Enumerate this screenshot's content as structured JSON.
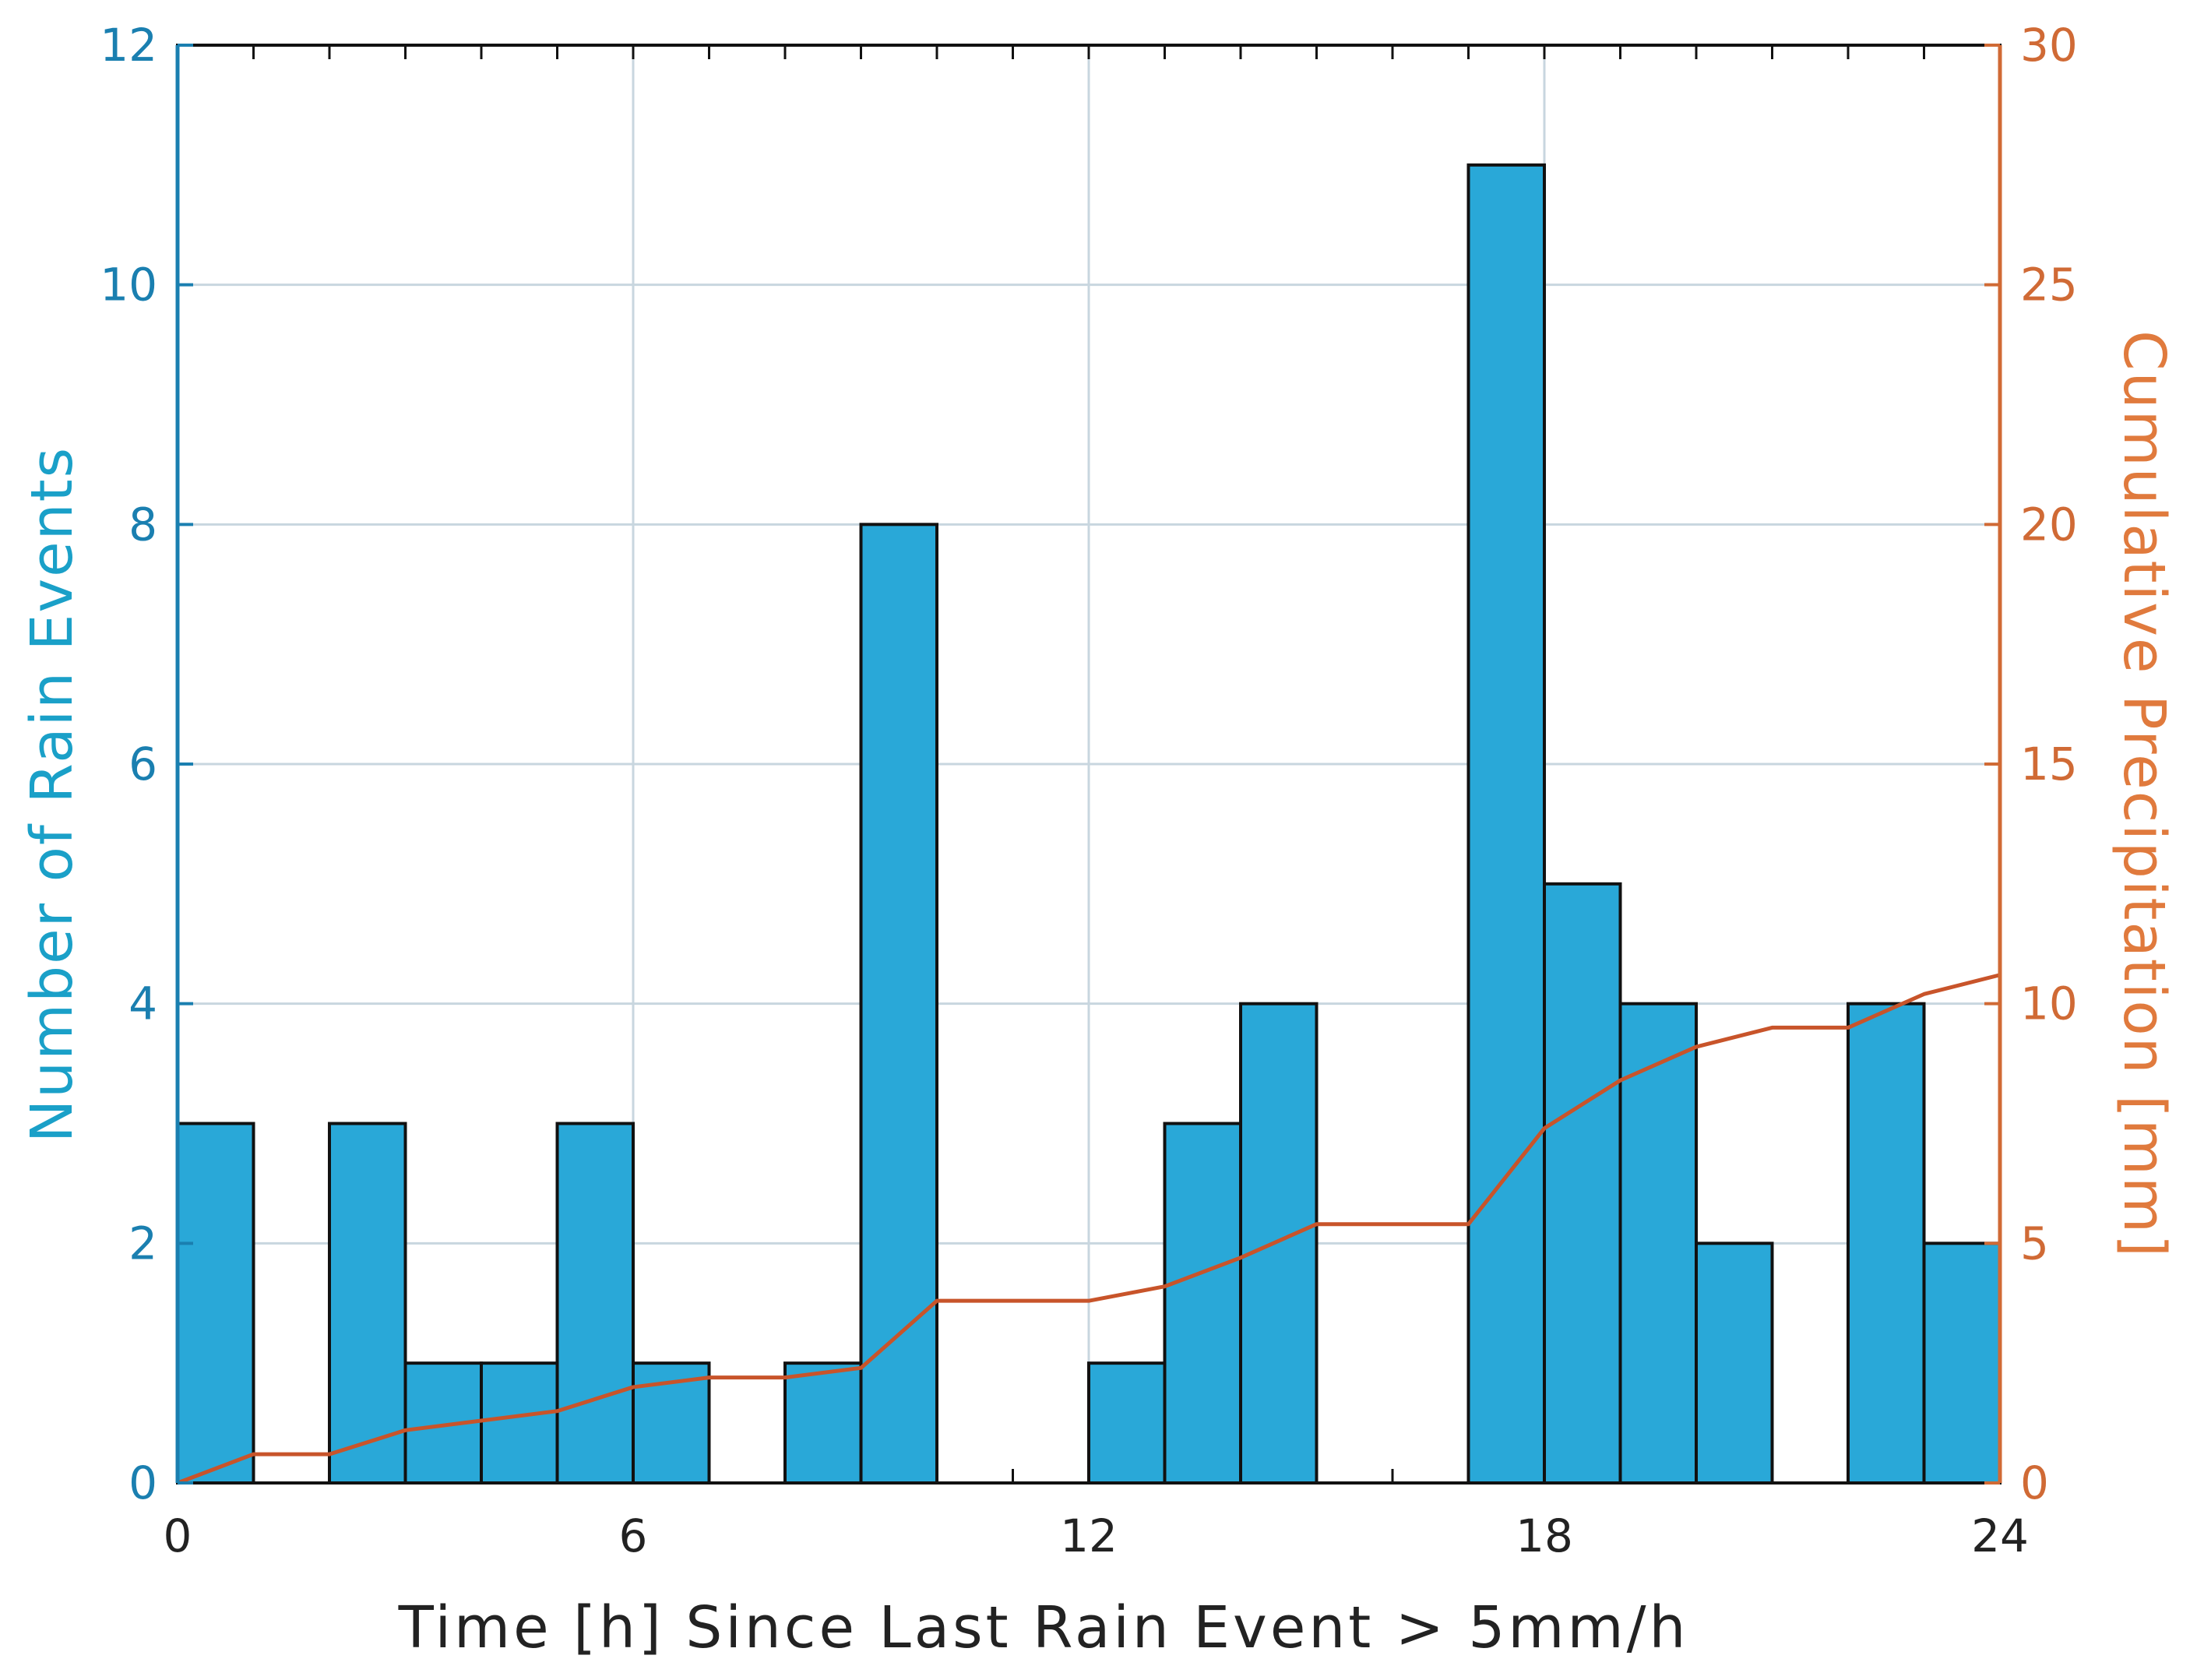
{
  "chart_data": {
    "type": "bar",
    "xlabel": "Time [h] Since Last Rain Event > 5mm/h",
    "ylabel_left": "Number of Rain Events",
    "ylabel_right": "Cumulative Precipitation [mm]",
    "xlim": [
      0,
      24
    ],
    "ylim_left": [
      0,
      12
    ],
    "ylim_right": [
      0,
      30
    ],
    "x_ticks": [
      "0",
      "6",
      "12",
      "18",
      "24"
    ],
    "y_ticks_left": [
      "0",
      "2",
      "4",
      "6",
      "8",
      "10",
      "12"
    ],
    "y_ticks_right": [
      "0",
      "5",
      "10",
      "15",
      "20",
      "25",
      "30"
    ],
    "grid": true,
    "bin_width_h": 1,
    "series": [
      {
        "name": "Number of Rain Events",
        "kind": "histogram",
        "axis": "left",
        "bins": [
          0,
          1,
          2,
          3,
          4,
          5,
          6,
          7,
          8,
          9,
          10,
          11,
          12,
          13,
          14,
          15,
          16,
          17,
          18,
          19,
          20,
          21,
          22,
          23
        ],
        "values": [
          3,
          0,
          3,
          1,
          1,
          3,
          1,
          0,
          1,
          8,
          0,
          0,
          1,
          3,
          4,
          0,
          0,
          11,
          5,
          4,
          2,
          0,
          4,
          2
        ]
      },
      {
        "name": "Cumulative Precipitation",
        "kind": "line",
        "axis": "right",
        "x": [
          0,
          1,
          2,
          3,
          4,
          5,
          6,
          7,
          8,
          9,
          10,
          11,
          12,
          13,
          14,
          15,
          16,
          17,
          18,
          19,
          20,
          21,
          22,
          23,
          24
        ],
        "y": [
          0,
          0.6,
          0.6,
          1.1,
          1.3,
          1.5,
          2.0,
          2.2,
          2.2,
          2.4,
          3.8,
          3.8,
          3.8,
          4.1,
          4.7,
          5.4,
          5.4,
          5.4,
          7.4,
          8.4,
          9.1,
          9.5,
          9.5,
          10.2,
          10.6
        ]
      }
    ],
    "colors": {
      "bar_fill": "#29a8d8",
      "bar_edge": "#111111",
      "line": "#c8542a",
      "grid": "#c8d6df",
      "left_axis": "#1a7fb0",
      "right_axis": "#d06a35"
    }
  }
}
